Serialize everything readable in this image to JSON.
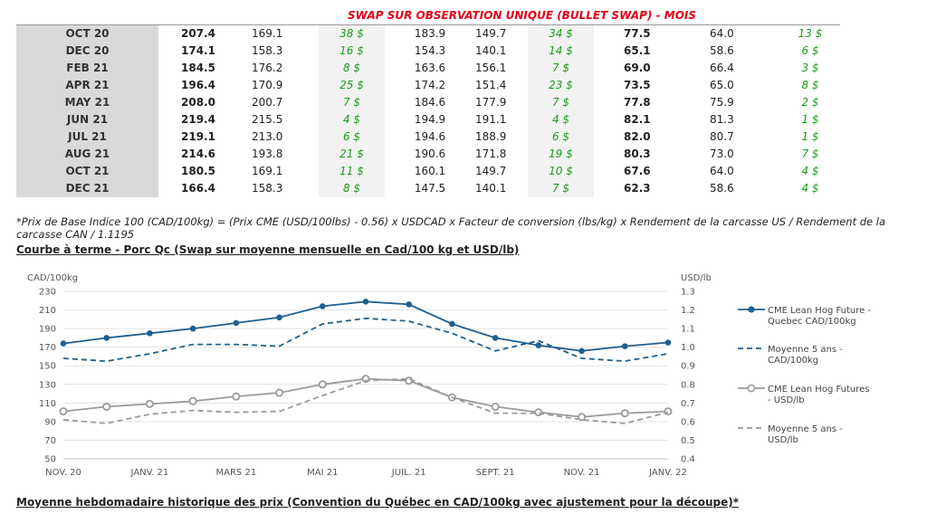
{
  "table": {
    "title": "SWAP SUR OBSERVATION UNIQUE (BULLET SWAP) - MOIS",
    "rows": [
      {
        "month": "OCT 20",
        "a1": "207.4",
        "a2": "169.1",
        "a3": "38 $",
        "b1": "183.9",
        "b2": "149.7",
        "b3": "34 $",
        "c1": "77.5",
        "c2": "64.0",
        "c3": "13 $"
      },
      {
        "month": "DEC 20",
        "a1": "174.1",
        "a2": "158.3",
        "a3": "16 $",
        "b1": "154.3",
        "b2": "140.1",
        "b3": "14 $",
        "c1": "65.1",
        "c2": "58.6",
        "c3": "6 $"
      },
      {
        "month": "FEB 21",
        "a1": "184.5",
        "a2": "176.2",
        "a3": "8 $",
        "b1": "163.6",
        "b2": "156.1",
        "b3": "7 $",
        "c1": "69.0",
        "c2": "66.4",
        "c3": "3 $"
      },
      {
        "month": "APR 21",
        "a1": "196.4",
        "a2": "170.9",
        "a3": "25 $",
        "b1": "174.2",
        "b2": "151.4",
        "b3": "23 $",
        "c1": "73.5",
        "c2": "65.0",
        "c3": "8 $"
      },
      {
        "month": "MAY 21",
        "a1": "208.0",
        "a2": "200.7",
        "a3": "7 $",
        "b1": "184.6",
        "b2": "177.9",
        "b3": "7 $",
        "c1": "77.8",
        "c2": "75.9",
        "c3": "2 $"
      },
      {
        "month": "JUN 21",
        "a1": "219.4",
        "a2": "215.5",
        "a3": "4 $",
        "b1": "194.9",
        "b2": "191.1",
        "b3": "4 $",
        "c1": "82.1",
        "c2": "81.3",
        "c3": "1 $"
      },
      {
        "month": "JUL 21",
        "a1": "219.1",
        "a2": "213.0",
        "a3": "6 $",
        "b1": "194.6",
        "b2": "188.9",
        "b3": "6 $",
        "c1": "82.0",
        "c2": "80.7",
        "c3": "1 $"
      },
      {
        "month": "AUG 21",
        "a1": "214.6",
        "a2": "193.8",
        "a3": "21 $",
        "b1": "190.6",
        "b2": "171.8",
        "b3": "19 $",
        "c1": "80.3",
        "c2": "73.0",
        "c3": "7 $"
      },
      {
        "month": "OCT 21",
        "a1": "180.5",
        "a2": "169.1",
        "a3": "11 $",
        "b1": "160.1",
        "b2": "149.7",
        "b3": "10 $",
        "c1": "67.6",
        "c2": "64.0",
        "c3": "4 $"
      },
      {
        "month": "DEC 21",
        "a1": "166.4",
        "a2": "158.3",
        "a3": "8 $",
        "b1": "147.5",
        "b2": "140.1",
        "b3": "7 $",
        "c1": "62.3",
        "c2": "58.6",
        "c3": "4 $"
      }
    ]
  },
  "footnote": "*Prix de Base Indice 100 (CAD/100kg) = (Prix CME (USD/100lbs) - 0.56) x USDCAD x Facteur de conversion (lbs/kg) x Rendement de la carcasse US / Rendement de la carcasse CAN / 1.1195",
  "chart_title": "Courbe à terme - Porc Qc (Swap sur moyenne mensuelle en Cad/100 kg et USD/lb)",
  "bottom_title": "Moyenne hebdomadaire historique des prix (Convention du Québec en CAD/100kg avec ajustement pour la découpe)*",
  "chart_data": {
    "type": "line",
    "y_left_label": "CAD/100kg",
    "y_right_label": "USD/lb",
    "y_left_ticks": [
      "50",
      "70",
      "90",
      "110",
      "130",
      "150",
      "170",
      "190",
      "210",
      "230"
    ],
    "y_right_ticks": [
      "0.4",
      "0.5",
      "0.6",
      "0.7",
      "0.8",
      "0.9",
      "1.0",
      "1.1",
      "1.2",
      "1.3"
    ],
    "ylim_left": [
      50,
      230
    ],
    "ylim_right": [
      0.4,
      1.3
    ],
    "x_tick_labels": [
      "NOV. 20",
      "JANV. 21",
      "MARS 21",
      "MAI 21",
      "JUIL. 21",
      "SEPT. 21",
      "NOV. 21",
      "JANV. 22"
    ],
    "x_tick_index": [
      0,
      2,
      4,
      6,
      8,
      10,
      12,
      14
    ],
    "x_count": 15,
    "grid": true,
    "legend_position": "right",
    "colors": {
      "blue": "#1f5f8f",
      "gray": "#9a9a9a"
    },
    "series": [
      {
        "name": "CME Lean Hog Future - Quebec CAD/100kg",
        "axis": "left",
        "style": "solid-marker",
        "color": "#1f5f8f",
        "x": [
          0,
          1,
          2,
          3,
          4,
          5,
          6,
          7,
          8,
          9,
          10,
          11,
          12,
          13,
          14
        ],
        "values": [
          174,
          180,
          185,
          190,
          196,
          202,
          214,
          219,
          216,
          195,
          180,
          172,
          166,
          171,
          175
        ]
      },
      {
        "name": "Moyenne 5 ans - CAD/100kg",
        "axis": "left",
        "style": "dashed",
        "color": "#1f5f8f",
        "x": [
          0,
          1,
          2,
          3,
          4,
          5,
          6,
          7,
          8,
          9,
          10,
          11,
          12,
          13,
          14
        ],
        "values": [
          158,
          155,
          163,
          173,
          173,
          171,
          195,
          201,
          198,
          185,
          166,
          177,
          158,
          155,
          163
        ]
      },
      {
        "name": "CME Lean Hog Futures - USD/lb",
        "axis": "right",
        "style": "solid-marker",
        "color": "#9a9a9a",
        "x": [
          0,
          1,
          2,
          3,
          4,
          5,
          6,
          7,
          8,
          9,
          10,
          11,
          12,
          13,
          14
        ],
        "values": [
          0.655,
          0.68,
          0.695,
          0.71,
          0.735,
          0.755,
          0.8,
          0.83,
          0.82,
          0.73,
          0.68,
          0.65,
          0.625,
          0.645,
          0.655
        ]
      },
      {
        "name": "Moyenne 5 ans - USD/lb",
        "axis": "right",
        "style": "dashed",
        "color": "#9a9a9a",
        "x": [
          0,
          1,
          2,
          3,
          4,
          5,
          6,
          7,
          8,
          9,
          10,
          11,
          12,
          13,
          14
        ],
        "values": [
          0.61,
          0.59,
          0.64,
          0.66,
          0.65,
          0.655,
          0.74,
          0.82,
          0.83,
          0.73,
          0.645,
          0.645,
          0.61,
          0.59,
          0.65
        ]
      }
    ],
    "legend": [
      {
        "lines": [
          "CME Lean Hog Future -",
          "Quebec CAD/100kg"
        ]
      },
      {
        "lines": [
          "Moyenne 5 ans -",
          "CAD/100kg"
        ]
      },
      {
        "lines": [
          "CME Lean Hog Futures",
          "- USD/lb"
        ]
      },
      {
        "lines": [
          "Moyenne 5 ans -",
          "USD/lb"
        ]
      }
    ]
  }
}
